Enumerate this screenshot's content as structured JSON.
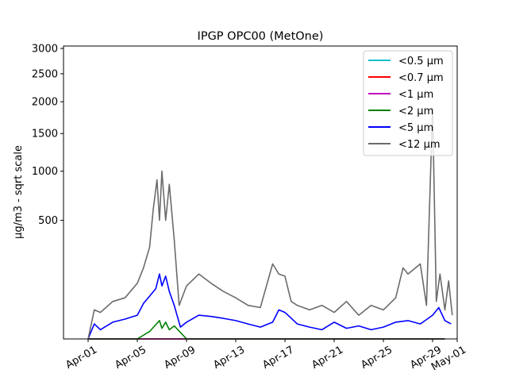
{
  "chart_data": {
    "type": "line",
    "title": "IPGP OPC00 (MetOne)",
    "xlabel": "",
    "ylabel": "µg/m3 - sqrt scale",
    "y_scale": "sqrt",
    "xlim": [
      "2024-03-30",
      "2024-05-01"
    ],
    "ylim": [
      0,
      3050
    ],
    "grid": false,
    "legend_position": "top-right",
    "x_ticks": [
      {
        "date": "2024-04-01",
        "label": "Apr-01"
      },
      {
        "date": "2024-04-05",
        "label": "Apr-05"
      },
      {
        "date": "2024-04-09",
        "label": "Apr-09"
      },
      {
        "date": "2024-04-13",
        "label": "Apr-13"
      },
      {
        "date": "2024-04-17",
        "label": "Apr-17"
      },
      {
        "date": "2024-04-21",
        "label": "Apr-21"
      },
      {
        "date": "2024-04-25",
        "label": "Apr-25"
      },
      {
        "date": "2024-04-29",
        "label": "Apr-29"
      },
      {
        "date": "2024-05-01",
        "label": "May-01"
      }
    ],
    "y_ticks": [
      {
        "value": 500,
        "label": "500"
      },
      {
        "value": 1000,
        "label": "1000"
      },
      {
        "value": 1500,
        "label": "1500"
      },
      {
        "value": 2000,
        "label": "2000"
      },
      {
        "value": 2500,
        "label": "2500"
      },
      {
        "value": 3000,
        "label": "3000"
      }
    ],
    "series": [
      {
        "name": "<0.5 µm",
        "color": "#17becf",
        "x": [
          "2024-04-01",
          "2024-04-10",
          "2024-04-20",
          "2024-04-30"
        ],
        "y": [
          0,
          0,
          0,
          0
        ]
      },
      {
        "name": "<0.7 µm",
        "color": "#ff0000",
        "x": [
          "2024-04-01",
          "2024-04-10",
          "2024-04-20",
          "2024-04-30"
        ],
        "y": [
          0,
          0,
          0,
          0
        ]
      },
      {
        "name": "<1 µm",
        "color": "#bf00bf",
        "x": [
          "2024-04-01",
          "2024-04-10",
          "2024-04-20",
          "2024-04-30"
        ],
        "y": [
          0,
          0,
          0,
          0
        ]
      },
      {
        "name": "<2 µm",
        "color": "#008000",
        "x": [
          "2024-04-01",
          "2024-04-05",
          "2024-04-06",
          "2024-04-06.8",
          "2024-04-07",
          "2024-04-07.3",
          "2024-04-07.6",
          "2024-04-08",
          "2024-04-09",
          "2024-04-20",
          "2024-04-30"
        ],
        "y": [
          0,
          0,
          2,
          12,
          4,
          10,
          3,
          6,
          0,
          0,
          0
        ]
      },
      {
        "name": "<5 µm",
        "color": "#0000ff",
        "x": [
          "2024-04-01",
          "2024-04-01.5",
          "2024-04-02",
          "2024-04-03",
          "2024-04-04",
          "2024-04-05",
          "2024-04-05.5",
          "2024-04-06",
          "2024-04-06.5",
          "2024-04-06.8",
          "2024-04-07",
          "2024-04-07.3",
          "2024-04-07.6",
          "2024-04-08",
          "2024-04-08.5",
          "2024-04-09",
          "2024-04-10",
          "2024-04-11",
          "2024-04-12",
          "2024-04-13",
          "2024-04-14",
          "2024-04-15",
          "2024-04-16",
          "2024-04-16.5",
          "2024-04-17",
          "2024-04-18",
          "2024-04-19",
          "2024-04-20",
          "2024-04-21",
          "2024-04-22",
          "2024-04-23",
          "2024-04-24",
          "2024-04-25",
          "2024-04-26",
          "2024-04-27",
          "2024-04-28",
          "2024-04-29",
          "2024-04-29.5",
          "2024-04-30",
          "2024-04-30.5"
        ],
        "y": [
          0,
          8,
          3,
          10,
          14,
          20,
          45,
          65,
          90,
          150,
          100,
          140,
          80,
          40,
          5,
          10,
          20,
          18,
          15,
          12,
          8,
          5,
          10,
          30,
          25,
          8,
          5,
          3,
          10,
          4,
          6,
          3,
          5,
          10,
          12,
          8,
          20,
          35,
          12,
          8
        ]
      },
      {
        "name": "<12 µm",
        "color": "#6b6b6b",
        "x": [
          "2024-04-01",
          "2024-04-01.5",
          "2024-04-02",
          "2024-04-03",
          "2024-04-04",
          "2024-04-05",
          "2024-04-05.5",
          "2024-04-06",
          "2024-04-06.3",
          "2024-04-06.6",
          "2024-04-06.8",
          "2024-04-07",
          "2024-04-07.3",
          "2024-04-07.6",
          "2024-04-08",
          "2024-04-08.4",
          "2024-04-09",
          "2024-04-10",
          "2024-04-11",
          "2024-04-12",
          "2024-04-13",
          "2024-04-14",
          "2024-04-15",
          "2024-04-16",
          "2024-04-16.5",
          "2024-04-17",
          "2024-04-17.5",
          "2024-04-18",
          "2024-04-19",
          "2024-04-20",
          "2024-04-21",
          "2024-04-22",
          "2024-04-23",
          "2024-04-24",
          "2024-04-25",
          "2024-04-26",
          "2024-04-26.6",
          "2024-04-27",
          "2024-04-28",
          "2024-04-28.5",
          "2024-04-29",
          "2024-04-29.3",
          "2024-04-29.6",
          "2024-04-30",
          "2024-04-30.3",
          "2024-04-30.6"
        ],
        "y": [
          0,
          30,
          25,
          50,
          60,
          110,
          180,
          300,
          600,
          900,
          500,
          1000,
          500,
          850,
          350,
          40,
          100,
          150,
          110,
          80,
          60,
          40,
          35,
          200,
          150,
          140,
          50,
          40,
          30,
          40,
          25,
          50,
          20,
          40,
          30,
          60,
          180,
          150,
          200,
          40,
          1900,
          50,
          150,
          30,
          120,
          20
        ]
      }
    ]
  }
}
